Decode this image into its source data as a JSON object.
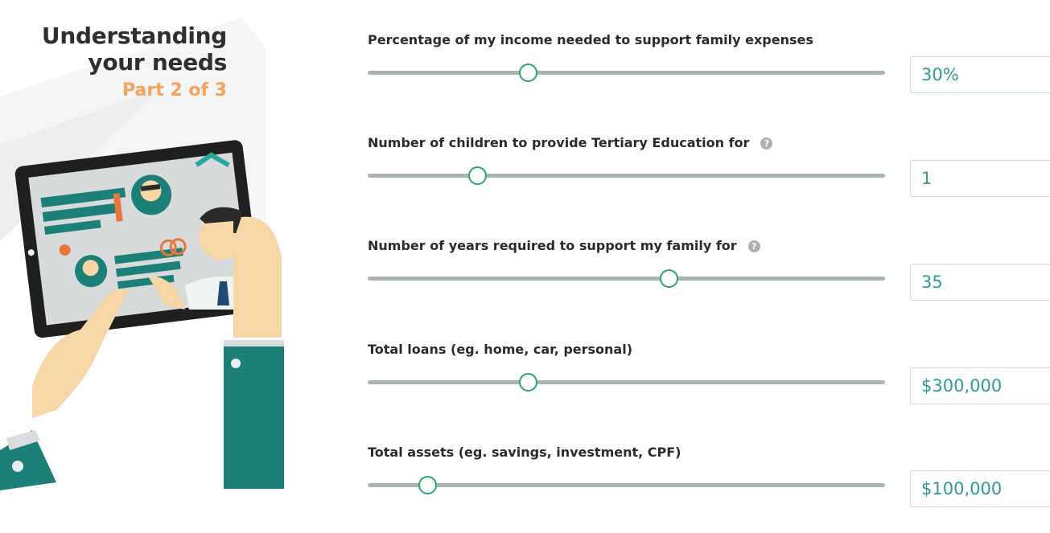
{
  "intro": {
    "title_line1": "Understanding",
    "title_line2": "your needs",
    "part": "Part 2 of 3"
  },
  "fields": [
    {
      "label": "Percentage of my income needed to support family expenses",
      "value": "30%",
      "slider_fraction": 0.31,
      "has_help": false
    },
    {
      "label": "Number of children to provide Tertiary Education for",
      "value": "1",
      "slider_fraction": 0.21,
      "has_help": true
    },
    {
      "label": "Number of years required to support my family for",
      "value": "35",
      "slider_fraction": 0.58,
      "has_help": true
    },
    {
      "label": "Total loans (eg. home, car, personal)",
      "value": "$300,000",
      "slider_fraction": 0.31,
      "has_help": false
    },
    {
      "label": "Total assets (eg. savings, investment, CPF)",
      "value": "$100,000",
      "slider_fraction": 0.115,
      "has_help": false
    }
  ],
  "help_glyph": "?",
  "colors": {
    "accent_orange": "#f5a25d",
    "teal": "#2a9d8f",
    "slider_green": "#2aa568"
  }
}
